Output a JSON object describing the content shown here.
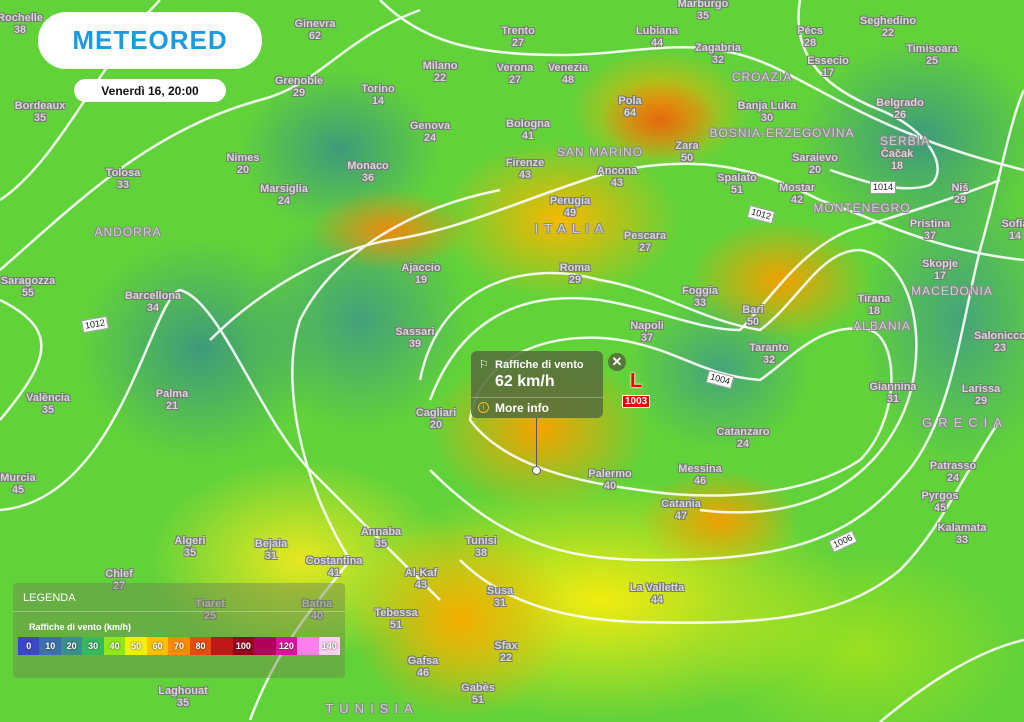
{
  "brand": {
    "name": "METEORED",
    "color": "#1a9be0"
  },
  "datetime": "Venerdì 16, 20:00",
  "popup": {
    "icon": "wind-flag-icon",
    "title": "Raffiche di vento",
    "value": "62 km/h",
    "more_info": "More info",
    "close_icon": "close-icon"
  },
  "pressure_low": {
    "symbol": "L",
    "value": "1003",
    "color": "#e00000"
  },
  "isobar_labels": [
    "1012",
    "1014",
    "1012",
    "1004",
    "1006"
  ],
  "legend": {
    "title": "LEGENDA",
    "subtitle": "Raffiche di vento (km/h)",
    "scale": [
      {
        "label": "0",
        "color": "#3b47c4"
      },
      {
        "label": "10",
        "color": "#3d6fb0"
      },
      {
        "label": "20",
        "color": "#3a8f8a"
      },
      {
        "label": "30",
        "color": "#36b85c"
      },
      {
        "label": "40",
        "color": "#8fe61a"
      },
      {
        "label": "50",
        "color": "#f2f200"
      },
      {
        "label": "60",
        "color": "#ffc000"
      },
      {
        "label": "70",
        "color": "#ff8a00"
      },
      {
        "label": "80",
        "color": "#e84a10"
      },
      {
        "label": "",
        "color": "#c01818"
      },
      {
        "label": "100",
        "color": "#98001c"
      },
      {
        "label": "",
        "color": "#b0005a"
      },
      {
        "label": "120",
        "color": "#e010a0"
      },
      {
        "label": "",
        "color": "#ff80e8"
      },
      {
        "label": "140",
        "color": "#ffd0f5"
      }
    ]
  },
  "countries": [
    "CROAZIA",
    "BOSNIA-ERZEGOVINA",
    "SERBIA",
    "SAN MARINO",
    "MONTENEGRO",
    "ITALIA",
    "ANDORRA",
    "MACEDONIA",
    "ALBANIA",
    "GRECIA",
    "TUNISIA"
  ],
  "cities": [
    {
      "name": "Rochelle",
      "value": "38"
    },
    {
      "name": "Bordeaux",
      "value": "35"
    },
    {
      "name": "Ginevra",
      "value": "62"
    },
    {
      "name": "Grenoble",
      "value": "29"
    },
    {
      "name": "Torino",
      "value": "14"
    },
    {
      "name": "Milano",
      "value": "22"
    },
    {
      "name": "Trento",
      "value": "27"
    },
    {
      "name": "Verona",
      "value": "27"
    },
    {
      "name": "Venezia",
      "value": "48"
    },
    {
      "name": "Lubiana",
      "value": "44"
    },
    {
      "name": "Marburgo",
      "value": "35"
    },
    {
      "name": "Zagabria",
      "value": "32"
    },
    {
      "name": "Pécs",
      "value": "28"
    },
    {
      "name": "Seghedino",
      "value": "22"
    },
    {
      "name": "Timisoara",
      "value": "25"
    },
    {
      "name": "Essecio",
      "value": "17"
    },
    {
      "name": "Genova",
      "value": "24"
    },
    {
      "name": "Bologna",
      "value": "41"
    },
    {
      "name": "Pola",
      "value": "64"
    },
    {
      "name": "Banja Luka",
      "value": "30"
    },
    {
      "name": "Belgrado",
      "value": "26"
    },
    {
      "name": "Čačak",
      "value": "18"
    },
    {
      "name": "Nimes",
      "value": "20"
    },
    {
      "name": "Monaco",
      "value": "36"
    },
    {
      "name": "Tolosa",
      "value": "33"
    },
    {
      "name": "Marsiglia",
      "value": "24"
    },
    {
      "name": "Firenze",
      "value": "43"
    },
    {
      "name": "Zara",
      "value": "50"
    },
    {
      "name": "Ancona",
      "value": "43"
    },
    {
      "name": "Saraievo",
      "value": "20"
    },
    {
      "name": "Spalato",
      "value": "51"
    },
    {
      "name": "Mostar",
      "value": "42"
    },
    {
      "name": "Niš",
      "value": "29"
    },
    {
      "name": "Perugia",
      "value": "49"
    },
    {
      "name": "Pristina",
      "value": "37"
    },
    {
      "name": "Sofia",
      "value": "14"
    },
    {
      "name": "Pescara",
      "value": "27"
    },
    {
      "name": "Skopje",
      "value": "17"
    },
    {
      "name": "Ajaccio",
      "value": "19"
    },
    {
      "name": "Roma",
      "value": "29"
    },
    {
      "name": "Saragozza",
      "value": "55"
    },
    {
      "name": "Foggia",
      "value": "33"
    },
    {
      "name": "Barcellona",
      "value": "34"
    },
    {
      "name": "Bari",
      "value": "50"
    },
    {
      "name": "Tirana",
      "value": "18"
    },
    {
      "name": "Napoli",
      "value": "37"
    },
    {
      "name": "Sassari",
      "value": "39"
    },
    {
      "name": "Salonicco",
      "value": "23"
    },
    {
      "name": "Taranto",
      "value": "32"
    },
    {
      "name": "Giannina",
      "value": "31"
    },
    {
      "name": "Larissa",
      "value": "29"
    },
    {
      "name": "València",
      "value": "35"
    },
    {
      "name": "Palma",
      "value": "21"
    },
    {
      "name": "Cagliari",
      "value": "20"
    },
    {
      "name": "Catanzaro",
      "value": "24"
    },
    {
      "name": "Patrasso",
      "value": "24"
    },
    {
      "name": "Messina",
      "value": "46"
    },
    {
      "name": "Palermo",
      "value": "40"
    },
    {
      "name": "Murcia",
      "value": "45"
    },
    {
      "name": "Pyrgos",
      "value": "45"
    },
    {
      "name": "Catania",
      "value": "47"
    },
    {
      "name": "Kalamata",
      "value": "33"
    },
    {
      "name": "Algeri",
      "value": "35"
    },
    {
      "name": "Bejaia",
      "value": "31"
    },
    {
      "name": "Annaba",
      "value": "35"
    },
    {
      "name": "Tunisi",
      "value": "38"
    },
    {
      "name": "Costantina",
      "value": "41"
    },
    {
      "name": "Chlef",
      "value": "27"
    },
    {
      "name": "Al-Kaf",
      "value": "43"
    },
    {
      "name": "La Valletta",
      "value": "44"
    },
    {
      "name": "Susa",
      "value": "31"
    },
    {
      "name": "Tiaret",
      "value": "25"
    },
    {
      "name": "Batna",
      "value": "40"
    },
    {
      "name": "Tebessa",
      "value": "51"
    },
    {
      "name": "Sfax",
      "value": "22"
    },
    {
      "name": "Gafsa",
      "value": "46"
    },
    {
      "name": "Gabès",
      "value": "51"
    },
    {
      "name": "Laghouat",
      "value": "35"
    }
  ]
}
